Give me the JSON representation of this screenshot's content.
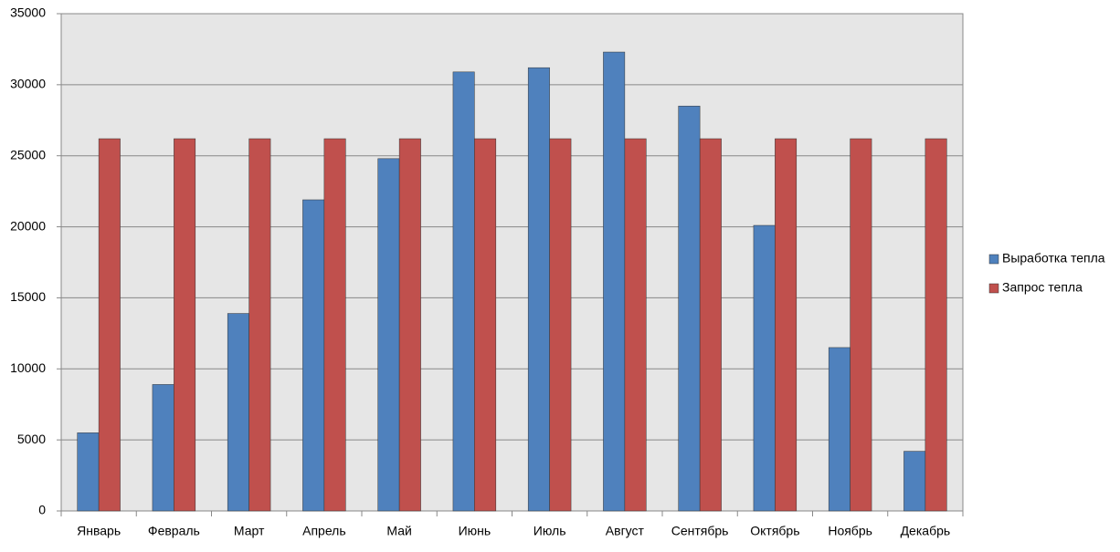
{
  "chart_data": {
    "type": "bar",
    "categories": [
      "Январь",
      "Февраль",
      "Март",
      "Апрель",
      "Май",
      "Июнь",
      "Июль",
      "Август",
      "Сентябрь",
      "Октябрь",
      "Ноябрь",
      "Декабрь"
    ],
    "series": [
      {
        "name": "Выработка тепла",
        "color": "#4f81bd",
        "values": [
          5500,
          8900,
          13900,
          21900,
          24800,
          30900,
          31200,
          32300,
          28500,
          20100,
          11500,
          4200
        ]
      },
      {
        "name": "Запрос тепла",
        "color": "#c0504d",
        "values": [
          26200,
          26200,
          26200,
          26200,
          26200,
          26200,
          26200,
          26200,
          26200,
          26200,
          26200,
          26200
        ]
      }
    ],
    "ylim": [
      0,
      35000
    ],
    "yticks": [
      0,
      5000,
      10000,
      15000,
      20000,
      25000,
      30000,
      35000
    ],
    "grid": true,
    "legend": "right"
  }
}
